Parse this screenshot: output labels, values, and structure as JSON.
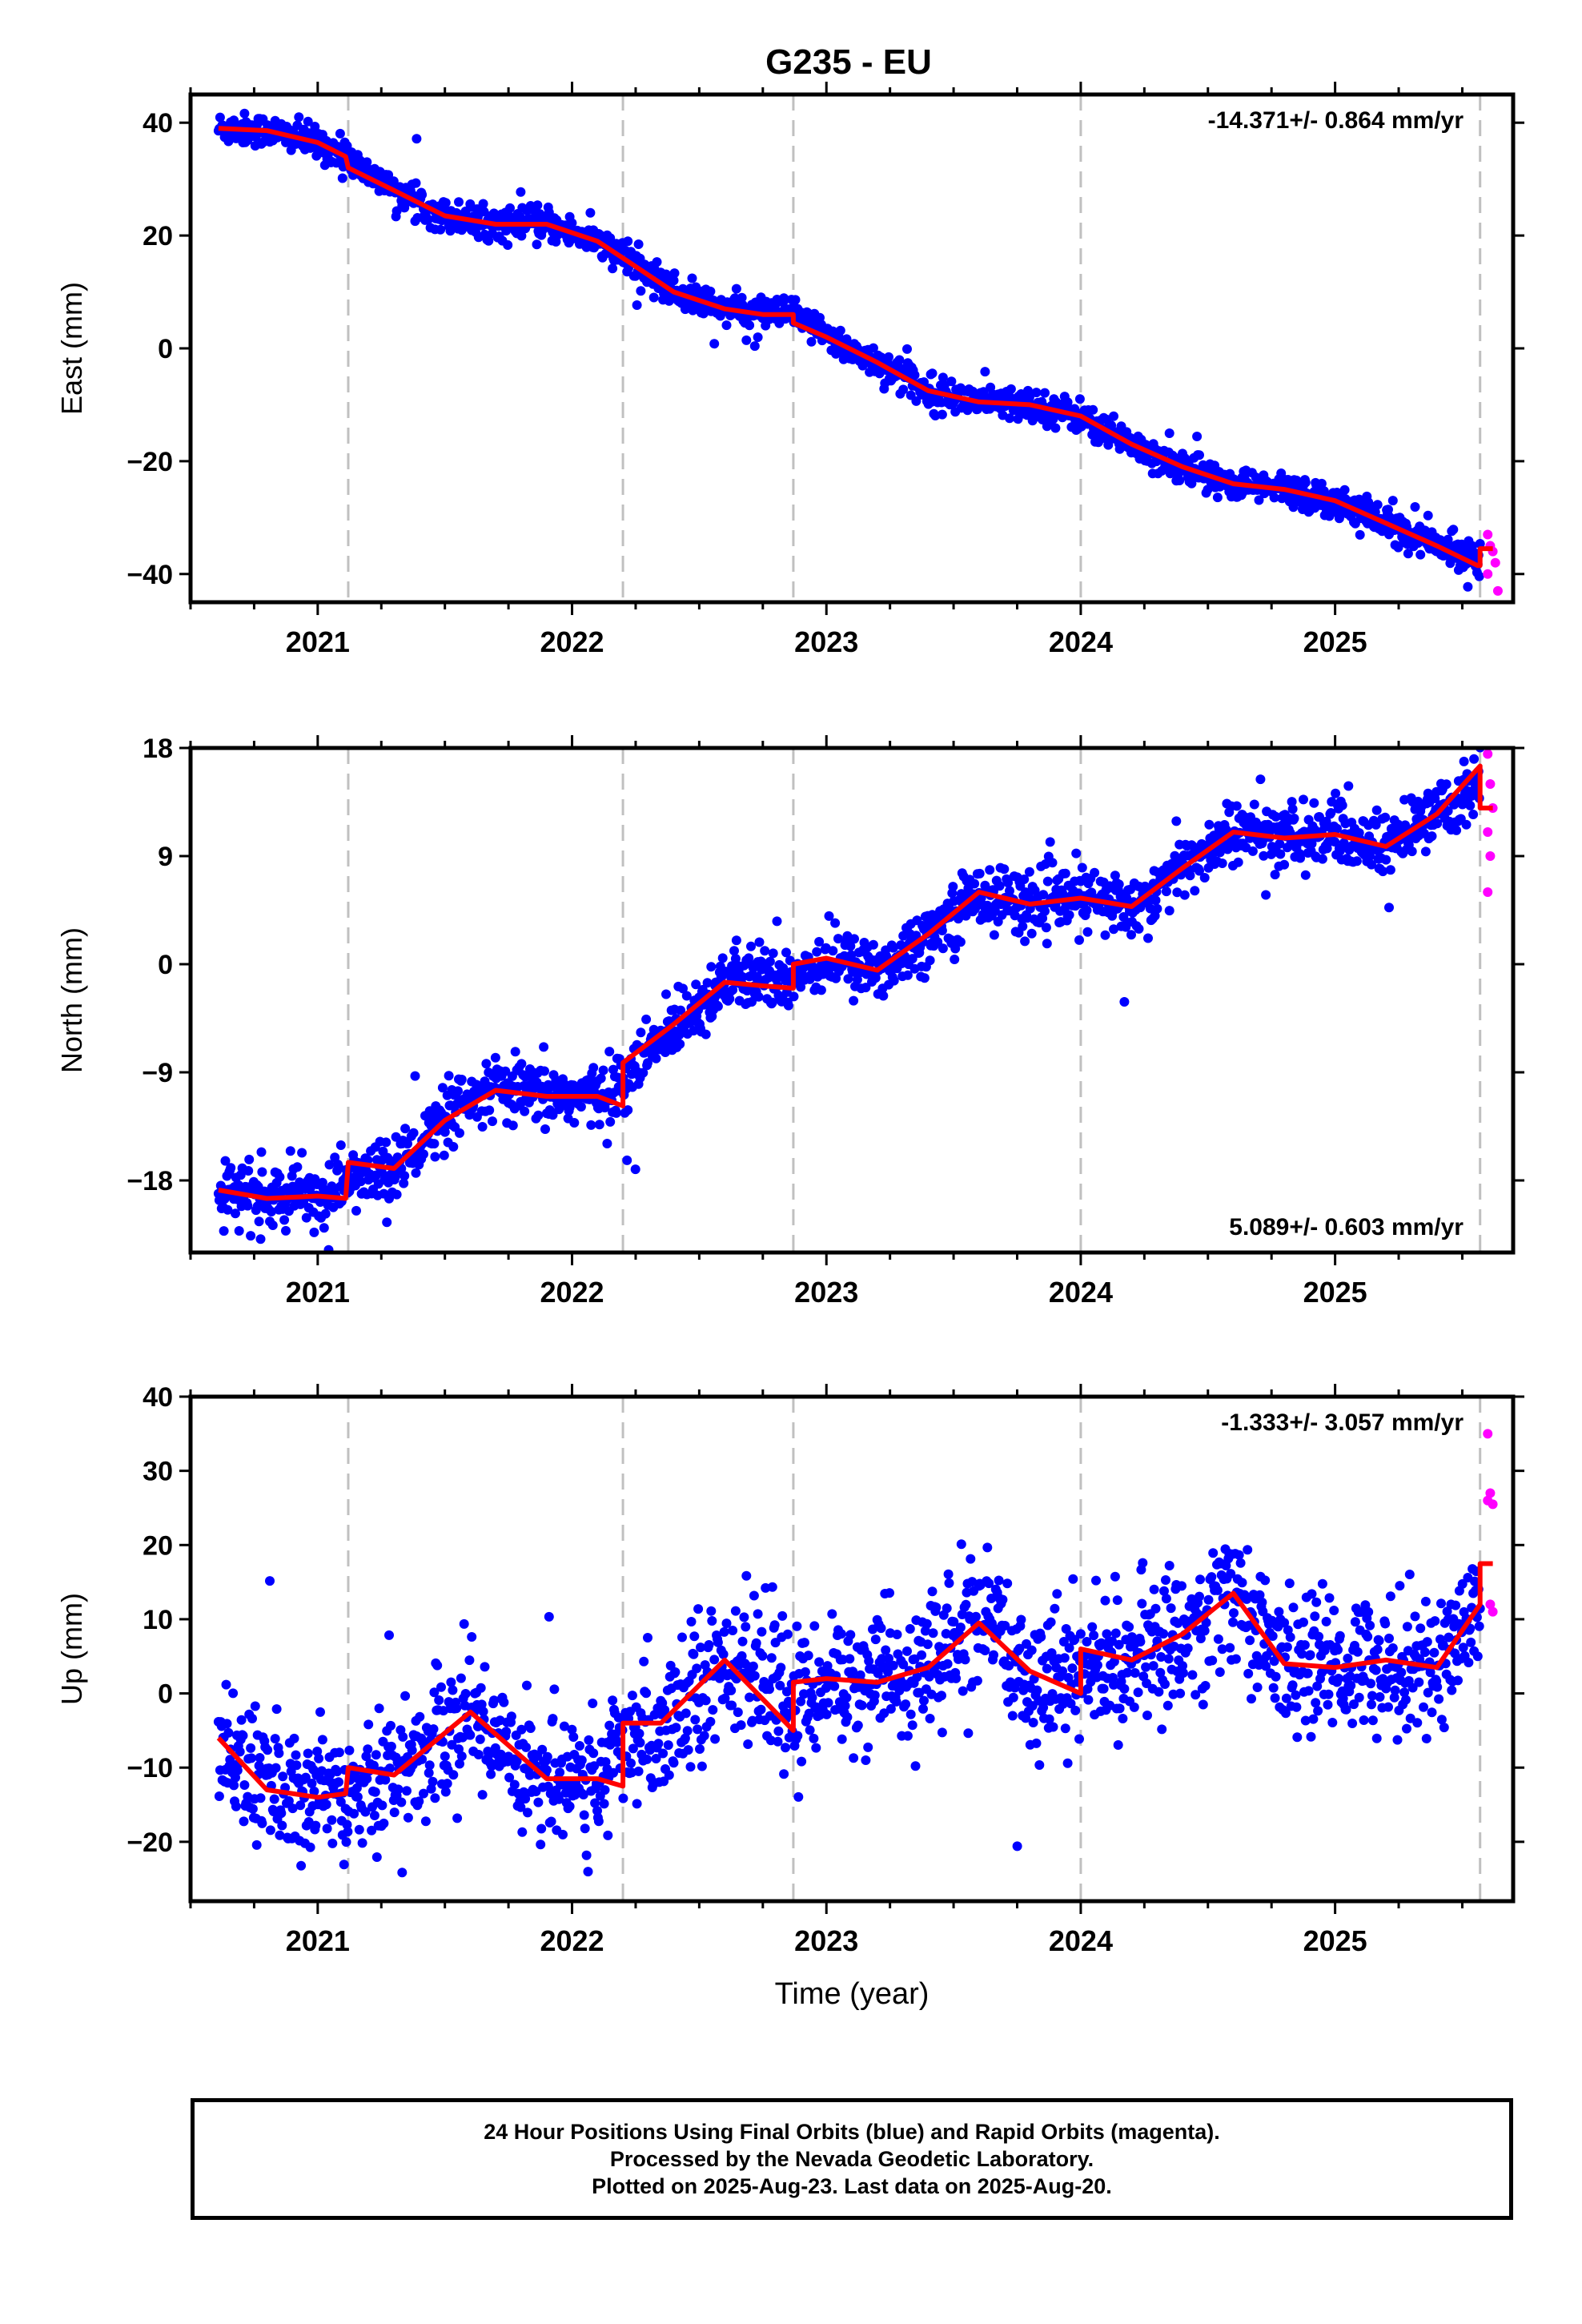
{
  "page": {
    "title": "G235 - EU"
  },
  "colors": {
    "final": "#0000ff",
    "rapid": "#ff00ff",
    "model": "#ff0000",
    "events": "#c0c0c0",
    "axis": "#000000"
  },
  "chart_data": [
    {
      "type": "scatter",
      "ylabel": "East (mm)",
      "xlabel": "",
      "velocity_label": "-14.371+/- 0.864 mm/yr",
      "velocity_position": "top-right",
      "xlim": [
        2020.5,
        2025.7
      ],
      "ylim": [
        -45,
        45
      ],
      "xticks": [
        2021,
        2022,
        2023,
        2024,
        2025
      ],
      "xtick_labels": [
        "2021",
        "2022",
        "2023",
        "2024",
        "2025"
      ],
      "yticks": [
        40,
        20,
        0,
        -20,
        -40
      ],
      "ytick_labels": [
        "40",
        "20",
        "0",
        "−20",
        "−40"
      ],
      "event_lines": [
        2021.12,
        2022.2,
        2022.87,
        2024.0,
        2025.57
      ],
      "model_points": [
        [
          2020.61,
          39
        ],
        [
          2020.8,
          38.6
        ],
        [
          2021.0,
          36.5
        ],
        [
          2021.11,
          34
        ],
        [
          2021.12,
          32
        ],
        [
          2021.3,
          28
        ],
        [
          2021.5,
          23.5
        ],
        [
          2021.7,
          22
        ],
        [
          2021.9,
          22
        ],
        [
          2022.1,
          19
        ],
        [
          2022.2,
          16
        ],
        [
          2022.4,
          10
        ],
        [
          2022.6,
          7
        ],
        [
          2022.75,
          6
        ],
        [
          2022.87,
          6
        ],
        [
          2022.87,
          4.5
        ],
        [
          2023.0,
          2
        ],
        [
          2023.2,
          -2.5
        ],
        [
          2023.4,
          -7.5
        ],
        [
          2023.6,
          -9.5
        ],
        [
          2023.8,
          -10
        ],
        [
          2024.0,
          -12
        ],
        [
          2024.2,
          -17
        ],
        [
          2024.4,
          -21
        ],
        [
          2024.6,
          -24
        ],
        [
          2024.8,
          -25
        ],
        [
          2025.0,
          -27
        ],
        [
          2025.2,
          -31
        ],
        [
          2025.4,
          -35
        ],
        [
          2025.56,
          -38.5
        ],
        [
          2025.57,
          -38.5
        ],
        [
          2025.57,
          -35.5
        ],
        [
          2025.62,
          -35.5
        ]
      ],
      "series": [
        {
          "name": "Final Orbits",
          "trend": [
            [
              2020.61,
              39
            ],
            [
              2020.8,
              38.6
            ],
            [
              2021.0,
              36.5
            ],
            [
              2021.11,
              34
            ],
            [
              2021.3,
              28
            ],
            [
              2021.5,
              23.5
            ],
            [
              2021.7,
              22
            ],
            [
              2021.9,
              22
            ],
            [
              2022.1,
              19
            ],
            [
              2022.2,
              16
            ],
            [
              2022.4,
              10
            ],
            [
              2022.6,
              7
            ],
            [
              2022.87,
              6
            ],
            [
              2023.0,
              2
            ],
            [
              2023.2,
              -2.5
            ],
            [
              2023.4,
              -7.5
            ],
            [
              2023.6,
              -9.5
            ],
            [
              2023.8,
              -10
            ],
            [
              2024.0,
              -12
            ],
            [
              2024.2,
              -17
            ],
            [
              2024.4,
              -21
            ],
            [
              2024.6,
              -24
            ],
            [
              2024.8,
              -25
            ],
            [
              2025.0,
              -27
            ],
            [
              2025.2,
              -31
            ],
            [
              2025.4,
              -35
            ],
            [
              2025.57,
              -37
            ]
          ],
          "range": [
            2020.61,
            2025.57
          ],
          "scatter": 1.4,
          "count": 1650
        },
        {
          "name": "Rapid Orbits",
          "points": [
            [
              2025.6,
              -33
            ],
            [
              2025.61,
              -35
            ],
            [
              2025.62,
              -36
            ],
            [
              2025.63,
              -38
            ],
            [
              2025.64,
              -43
            ],
            [
              2025.6,
              -40
            ]
          ]
        }
      ]
    },
    {
      "type": "scatter",
      "ylabel": "North (mm)",
      "xlabel": "",
      "velocity_label": "5.089+/- 0.603 mm/yr",
      "velocity_position": "bottom-right",
      "xlim": [
        2020.5,
        2025.7
      ],
      "ylim": [
        -24,
        18
      ],
      "xticks": [
        2021,
        2022,
        2023,
        2024,
        2025
      ],
      "xtick_labels": [
        "2021",
        "2022",
        "2023",
        "2024",
        "2025"
      ],
      "yticks": [
        18,
        9,
        0,
        -9,
        -18
      ],
      "ytick_labels": [
        "18",
        "9",
        "0",
        "−9",
        "−18"
      ],
      "event_lines": [
        2021.12,
        2022.2,
        2022.87,
        2024.0,
        2025.57
      ],
      "model_points": [
        [
          2020.61,
          -18.8
        ],
        [
          2020.8,
          -19.5
        ],
        [
          2021.0,
          -19.3
        ],
        [
          2021.11,
          -19.5
        ],
        [
          2021.12,
          -16.5
        ],
        [
          2021.3,
          -17
        ],
        [
          2021.5,
          -13
        ],
        [
          2021.7,
          -10.5
        ],
        [
          2021.9,
          -11
        ],
        [
          2022.1,
          -11
        ],
        [
          2022.2,
          -11.8
        ],
        [
          2022.2,
          -8.2
        ],
        [
          2022.4,
          -5
        ],
        [
          2022.6,
          -1.5
        ],
        [
          2022.75,
          -1.8
        ],
        [
          2022.87,
          -2
        ],
        [
          2022.87,
          0
        ],
        [
          2023.0,
          0.5
        ],
        [
          2023.2,
          -0.5
        ],
        [
          2023.4,
          2.5
        ],
        [
          2023.6,
          6
        ],
        [
          2023.8,
          5
        ],
        [
          2024.0,
          5.5
        ],
        [
          2024.2,
          4.8
        ],
        [
          2024.4,
          8
        ],
        [
          2024.6,
          11
        ],
        [
          2024.8,
          10.5
        ],
        [
          2025.0,
          10.8
        ],
        [
          2025.2,
          9.8
        ],
        [
          2025.4,
          12.5
        ],
        [
          2025.57,
          16.5
        ],
        [
          2025.57,
          13
        ],
        [
          2025.62,
          13
        ]
      ],
      "series": [
        {
          "name": "Final Orbits",
          "trend": [
            [
              2020.61,
              -18.8
            ],
            [
              2020.8,
              -19.5
            ],
            [
              2021.0,
              -19.3
            ],
            [
              2021.12,
              -18
            ],
            [
              2021.3,
              -17
            ],
            [
              2021.5,
              -13
            ],
            [
              2021.7,
              -10.5
            ],
            [
              2021.9,
              -11
            ],
            [
              2022.1,
              -11
            ],
            [
              2022.2,
              -10
            ],
            [
              2022.4,
              -5
            ],
            [
              2022.6,
              -1.5
            ],
            [
              2022.87,
              -1
            ],
            [
              2023.0,
              0.5
            ],
            [
              2023.2,
              -0.5
            ],
            [
              2023.4,
              2.5
            ],
            [
              2023.6,
              6
            ],
            [
              2023.8,
              5
            ],
            [
              2024.0,
              5.5
            ],
            [
              2024.2,
              4.8
            ],
            [
              2024.4,
              8
            ],
            [
              2024.6,
              11
            ],
            [
              2024.8,
              10.5
            ],
            [
              2025.0,
              10.8
            ],
            [
              2025.2,
              9.8
            ],
            [
              2025.4,
              12.5
            ],
            [
              2025.57,
              15
            ]
          ],
          "range": [
            2020.61,
            2025.57
          ],
          "scatter": 1.3,
          "count": 1650
        },
        {
          "name": "Rapid Orbits",
          "points": [
            [
              2025.6,
              17.5
            ],
            [
              2025.61,
              15
            ],
            [
              2025.62,
              13
            ],
            [
              2025.6,
              11
            ],
            [
              2025.61,
              9
            ],
            [
              2025.6,
              6
            ]
          ]
        }
      ]
    },
    {
      "type": "scatter",
      "ylabel": "Up (mm)",
      "xlabel": "Time (year)",
      "velocity_label": "-1.333+/- 3.057 mm/yr",
      "velocity_position": "top-right",
      "xlim": [
        2020.5,
        2025.7
      ],
      "ylim": [
        -28,
        40
      ],
      "xticks": [
        2021,
        2022,
        2023,
        2024,
        2025
      ],
      "xtick_labels": [
        "2021",
        "2022",
        "2023",
        "2024",
        "2025"
      ],
      "yticks": [
        40,
        30,
        20,
        10,
        0,
        -10,
        -20
      ],
      "ytick_labels": [
        "40",
        "30",
        "20",
        "10",
        "0",
        "−10",
        "−20"
      ],
      "event_lines": [
        2021.12,
        2022.2,
        2022.87,
        2024.0,
        2025.57
      ],
      "model_points": [
        [
          2020.61,
          -6
        ],
        [
          2020.8,
          -13
        ],
        [
          2021.0,
          -14
        ],
        [
          2021.11,
          -13.5
        ],
        [
          2021.12,
          -10
        ],
        [
          2021.3,
          -11
        ],
        [
          2021.6,
          -2.5
        ],
        [
          2021.9,
          -11.5
        ],
        [
          2022.1,
          -11.5
        ],
        [
          2022.2,
          -12.5
        ],
        [
          2022.2,
          -4
        ],
        [
          2022.35,
          -4
        ],
        [
          2022.6,
          4.5
        ],
        [
          2022.87,
          -5
        ],
        [
          2022.87,
          1.5
        ],
        [
          2023.0,
          2
        ],
        [
          2023.2,
          1.5
        ],
        [
          2023.4,
          3.5
        ],
        [
          2023.6,
          9.5
        ],
        [
          2023.8,
          3
        ],
        [
          2024.0,
          0
        ],
        [
          2024.0,
          6
        ],
        [
          2024.2,
          4.5
        ],
        [
          2024.4,
          8
        ],
        [
          2024.6,
          13.5
        ],
        [
          2024.8,
          4
        ],
        [
          2025.0,
          3.5
        ],
        [
          2025.2,
          4.5
        ],
        [
          2025.4,
          3.5
        ],
        [
          2025.57,
          12
        ],
        [
          2025.57,
          17.5
        ],
        [
          2025.62,
          17.5
        ]
      ],
      "series": [
        {
          "name": "Final Orbits",
          "trend": [
            [
              2020.61,
              -6
            ],
            [
              2020.8,
              -13
            ],
            [
              2021.0,
              -14
            ],
            [
              2021.12,
              -12
            ],
            [
              2021.3,
              -11
            ],
            [
              2021.6,
              -2.5
            ],
            [
              2021.9,
              -11.5
            ],
            [
              2022.1,
              -11.5
            ],
            [
              2022.2,
              -8
            ],
            [
              2022.35,
              -4
            ],
            [
              2022.6,
              4.5
            ],
            [
              2022.87,
              -2
            ],
            [
              2023.0,
              2
            ],
            [
              2023.2,
              1.5
            ],
            [
              2023.4,
              3.5
            ],
            [
              2023.6,
              9.5
            ],
            [
              2023.8,
              3
            ],
            [
              2024.0,
              3
            ],
            [
              2024.2,
              4.5
            ],
            [
              2024.4,
              8
            ],
            [
              2024.6,
              13.5
            ],
            [
              2024.8,
              4
            ],
            [
              2025.0,
              3.5
            ],
            [
              2025.2,
              4.5
            ],
            [
              2025.4,
              3.5
            ],
            [
              2025.57,
              12
            ]
          ],
          "range": [
            2020.61,
            2025.57
          ],
          "scatter": 4.5,
          "count": 1650
        },
        {
          "name": "Rapid Orbits",
          "points": [
            [
              2025.6,
              35
            ],
            [
              2025.61,
              27
            ],
            [
              2025.62,
              25.5
            ],
            [
              2025.6,
              26
            ],
            [
              2025.61,
              12
            ],
            [
              2025.62,
              11
            ]
          ]
        }
      ]
    }
  ],
  "caption": [
    "24 Hour Positions Using Final Orbits (blue) and Rapid Orbits (magenta).",
    "Processed by the Nevada Geodetic Laboratory.",
    "Plotted on 2025-Aug-23. Last data on 2025-Aug-20."
  ]
}
